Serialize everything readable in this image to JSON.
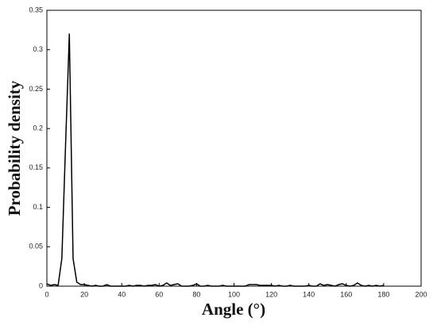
{
  "chart_data": {
    "type": "line",
    "x_label": "Angle (°)",
    "y_label": "Probability density",
    "x": [
      0,
      2,
      4,
      6,
      8,
      10,
      12,
      14,
      16,
      18,
      20,
      22,
      24,
      26,
      28,
      30,
      32,
      34,
      36,
      38,
      40,
      42,
      44,
      46,
      48,
      50,
      52,
      54,
      56,
      58,
      60,
      62,
      64,
      66,
      68,
      70,
      72,
      74,
      76,
      78,
      80,
      82,
      84,
      86,
      88,
      90,
      92,
      94,
      96,
      98,
      100,
      102,
      104,
      106,
      108,
      110,
      112,
      114,
      116,
      118,
      120,
      122,
      124,
      126,
      128,
      130,
      132,
      134,
      136,
      138,
      140,
      142,
      144,
      146,
      148,
      150,
      152,
      154,
      156,
      158,
      160,
      162,
      164,
      166,
      168,
      170,
      172,
      174,
      176,
      178,
      180
    ],
    "series": [
      {
        "color": "#000000",
        "values": [
          0.003,
          0.001,
          0.002,
          0.001,
          0.035,
          0.18,
          0.32,
          0.035,
          0.005,
          0.002,
          0.002,
          0.001,
          0,
          0.001,
          0,
          0,
          0.002,
          0,
          0,
          0,
          0,
          0,
          0.001,
          0,
          0.001,
          0.001,
          0,
          0.001,
          0.001,
          0.002,
          0,
          0.001,
          0.004,
          0.001,
          0.002,
          0.003,
          0,
          0,
          0,
          0.001,
          0.003,
          0,
          0,
          0.001,
          0,
          0,
          0,
          0.001,
          0,
          0,
          0,
          0,
          0,
          0,
          0.002,
          0.002,
          0.002,
          0.001,
          0.001,
          0.001,
          0.001,
          0,
          0.001,
          0,
          0,
          0.001,
          0,
          0,
          0,
          0,
          0.001,
          0,
          0,
          0.003,
          0.001,
          0.002,
          0.001,
          0,
          0.002,
          0.003,
          0.001,
          0,
          0.001,
          0.004,
          0.001,
          0,
          0.001,
          0,
          0.001,
          0,
          0.001
        ]
      }
    ],
    "xlim": [
      0,
      200
    ],
    "xticks": [
      0,
      20,
      40,
      60,
      80,
      100,
      120,
      140,
      160,
      180,
      200
    ],
    "ylim": [
      0,
      0.35
    ],
    "yticks": [
      0,
      0.05,
      0.1,
      0.15,
      0.2,
      0.25,
      0.3,
      0.35
    ]
  }
}
